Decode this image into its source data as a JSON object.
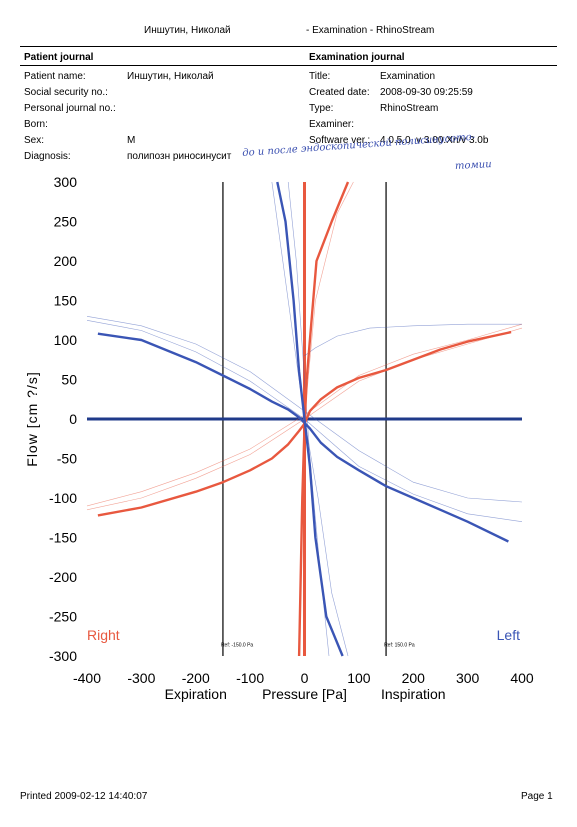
{
  "header": {
    "patient_name_top": "Иншутин, Николай",
    "title_top": "- Examination - RhinoStream"
  },
  "patient_journal": {
    "heading": "Patient journal",
    "rows": [
      {
        "label": "Patient name:",
        "value": "Иншутин, Николай"
      },
      {
        "label": "Social security no.:",
        "value": ""
      },
      {
        "label": "Personal journal no.:",
        "value": ""
      },
      {
        "label": "Born:",
        "value": ""
      },
      {
        "label": "Sex:",
        "value": "M"
      },
      {
        "label": "Diagnosis:",
        "value": "полипозн риносинусит"
      }
    ]
  },
  "examination_journal": {
    "heading": "Examination journal",
    "rows": [
      {
        "label": "Title:",
        "value": "Examination"
      },
      {
        "label": "Created date:",
        "value": "2008-09-30 09:25:59"
      },
      {
        "label": "Type:",
        "value": "RhinoStream"
      },
      {
        "label": "Examiner:",
        "value": ""
      },
      {
        "label": "Software ver.:",
        "value": "4.0.5.0, v 3.00.Xn/v 3.0b"
      }
    ]
  },
  "handwritten_note": {
    "line1": "до и после эндоскопической полисинусото-",
    "line2": "томии"
  },
  "chart_data": {
    "type": "line",
    "xlabel": "Pressure [Pa]",
    "ylabel": "Flow [cm ?/s]",
    "x_ticks": [
      -400,
      -300,
      -200,
      -100,
      0,
      100,
      200,
      300,
      400
    ],
    "y_ticks": [
      300,
      250,
      200,
      150,
      100,
      50,
      0,
      -50,
      -100,
      -150,
      -200,
      -250,
      -300
    ],
    "xlim": [
      -400,
      400
    ],
    "ylim": [
      -300,
      300
    ],
    "left_side_label": "Expiration",
    "right_side_label": "Inspiration",
    "side_right_label": "Right",
    "side_left_label": "Left",
    "ref_left_label": "Ref: -150.0 Pa",
    "ref_right_label": "Ref: 150.0 Pa",
    "ref_lines": [
      -150,
      150
    ],
    "colors": {
      "right": "#e8583f",
      "left": "#3a55b5",
      "axis": "#1f3a8a",
      "ref": "#000000"
    },
    "series": [
      {
        "name": "Right",
        "x": [
          -380,
          -300,
          -200,
          -150,
          -100,
          -60,
          -30,
          -10,
          0,
          10,
          30,
          60,
          100,
          150,
          200,
          250,
          300,
          380
        ],
        "y": [
          -122,
          -112,
          -92,
          -80,
          -65,
          -50,
          -32,
          -15,
          -6,
          10,
          25,
          40,
          52,
          62,
          75,
          88,
          98,
          110
        ]
      },
      {
        "name": "Left",
        "x": [
          -380,
          -300,
          -200,
          -150,
          -100,
          -60,
          -30,
          -10,
          0,
          10,
          30,
          60,
          100,
          150,
          200,
          250,
          300,
          375
        ],
        "y": [
          108,
          100,
          72,
          55,
          38,
          22,
          12,
          2,
          -5,
          -12,
          -30,
          -48,
          -65,
          -85,
          -100,
          -115,
          -130,
          -155
        ]
      },
      {
        "name": "Right-vertical",
        "x": [
          -10,
          -7,
          -4,
          0,
          4,
          10,
          22,
          50,
          80
        ],
        "y": [
          -300,
          -200,
          -100,
          -10,
          50,
          100,
          200,
          250,
          300
        ]
      },
      {
        "name": "Left-vertical",
        "x": [
          -50,
          -35,
          -20,
          -10,
          0,
          10,
          20,
          40,
          70
        ],
        "y": [
          300,
          250,
          150,
          60,
          0,
          -60,
          -150,
          -250,
          -300
        ]
      }
    ]
  },
  "footer": {
    "printed": "Printed 2009-02-12 14:40:07",
    "page": "Page 1"
  }
}
